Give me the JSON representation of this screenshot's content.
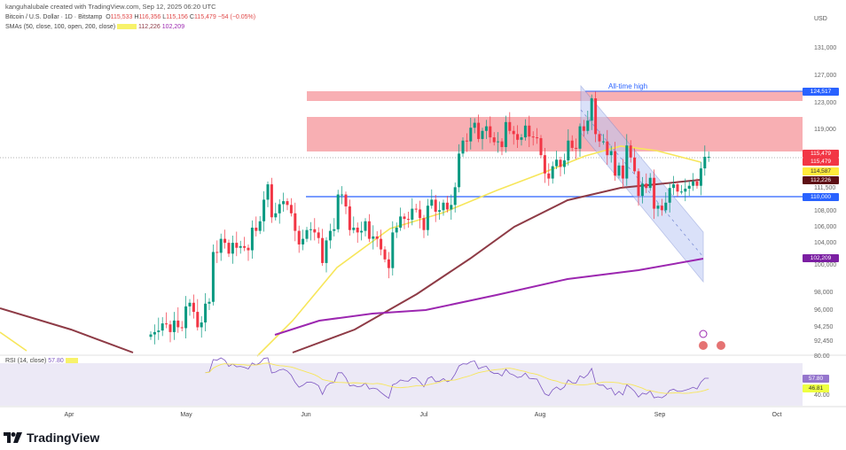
{
  "header": {
    "credit": "kanguhalubale created with TradingView.com, Sep 12, 2025 06:20 UTC",
    "symbol": "Bitcoin / U.S. Dollar · 1D · Bitstamp",
    "open_label": "O",
    "open": "115,533",
    "high_label": "H",
    "high": "116,356",
    "low_label": "L",
    "low": "115,156",
    "close_label": "C",
    "close": "115,479",
    "change": "−54 (−0.05%)",
    "sma_label": "SMAs (50, close, 100, open, 200, close)",
    "sma100_value": "112,226",
    "sma200_value": "102,209"
  },
  "axis": {
    "currency": "USD",
    "price_ticks": [
      "131,000",
      "127,000",
      "123,000",
      "119,000",
      "111,500",
      "108,000",
      "106,000",
      "104,000",
      "100,000",
      "98,000",
      "96,000",
      "94,250",
      "92,450"
    ],
    "rsi_ticks": [
      "80.00",
      "40.00"
    ],
    "months": [
      "Apr",
      "May",
      "Jun",
      "Jul",
      "Aug",
      "Sep",
      "Oct"
    ]
  },
  "price_tags": [
    {
      "value": "124,517",
      "color": "#2962ff"
    },
    {
      "value": "115,479",
      "color": "#f23645"
    },
    {
      "value": "115,479",
      "color": "#f23645"
    },
    {
      "value": "114,587",
      "color": "#ffeb3b"
    },
    {
      "value": "112,226",
      "color": "#5d0f14"
    },
    {
      "value": "110,000",
      "color": "#2962ff"
    },
    {
      "value": "102,209",
      "color": "#7b1fa2"
    }
  ],
  "rsi": {
    "label": "RSI (14, close)",
    "value": "57.80",
    "ma_value": "46.81"
  },
  "annotations": {
    "ath": "All-time high"
  },
  "branding": "TradingView",
  "colors": {
    "up": "#089981",
    "down": "#f23645",
    "sma50": "#f7e65a",
    "sma100": "#8e3b46",
    "sma200": "#9c27b0",
    "zone": "#f7a1a6",
    "channel": "#bcc9f5",
    "level": "#2962ff",
    "rsi": "#7e57c2"
  },
  "chart_data": {
    "type": "candlestick",
    "title": "Bitcoin / U.S. Dollar · 1D · Bitstamp",
    "ylabel": "USD",
    "start_date": "2025-04-22",
    "end_date": "2025-09-12",
    "closes_thousands": [
      93.4,
      93.7,
      93.9,
      94.7,
      94.6,
      93.7,
      95.0,
      94.3,
      94.2,
      96.5,
      96.9,
      95.9,
      94.3,
      94.8,
      96.8,
      97.0,
      103.0,
      102.9,
      104.6,
      104.1,
      102.8,
      104.1,
      103.5,
      103.7,
      103.5,
      103.2,
      106.0,
      105.6,
      106.8,
      109.6,
      111.7,
      107.3,
      107.8,
      109.0,
      109.4,
      108.9,
      107.8,
      105.6,
      103.9,
      104.6,
      105.7,
      105.8,
      105.4,
      104.7,
      101.6,
      104.4,
      105.6,
      105.8,
      110.3,
      110.3,
      108.7,
      105.7,
      106.0,
      105.4,
      105.6,
      106.8,
      104.6,
      104.9,
      104.6,
      103.3,
      102.1,
      100.9,
      105.4,
      106.0,
      107.4,
      107.1,
      107.0,
      108.4,
      108.3,
      107.2,
      105.7,
      108.8,
      109.6,
      108.0,
      108.2,
      109.2,
      108.3,
      108.9,
      111.3,
      115.9,
      117.5,
      117.4,
      119.1,
      119.8,
      117.7,
      118.7,
      119.3,
      117.9,
      117.3,
      117.4,
      116.7,
      119.9,
      118.7,
      118.3,
      117.6,
      117.9,
      119.4,
      118.0,
      117.9,
      117.8,
      115.7,
      113.2,
      112.5,
      114.2,
      115.1,
      114.1,
      115.0,
      117.5,
      116.6,
      116.5,
      119.3,
      118.7,
      120.1,
      123.3,
      118.3,
      117.4,
      117.4,
      115.7,
      116.2,
      112.9,
      114.3,
      112.5,
      116.9,
      115.4,
      113.5,
      110.1,
      111.8,
      111.2,
      112.6,
      108.4,
      108.8,
      108.2,
      109.2,
      111.2,
      111.7,
      110.7,
      110.7,
      111.1,
      111.5,
      112.1,
      111.5,
      113.9,
      115.5,
      115.5
    ],
    "levels": {
      "all_time_high": 124517,
      "support": 110000
    },
    "resistance_zones": [
      [
        123000,
        124517
      ],
      [
        115500,
        120500
      ]
    ],
    "sma": {
      "sma50": 114587,
      "sma100": 112226,
      "sma200": 102209
    },
    "rsi": {
      "value": 57.8,
      "ma": 46.81,
      "range": [
        40,
        80
      ]
    }
  }
}
